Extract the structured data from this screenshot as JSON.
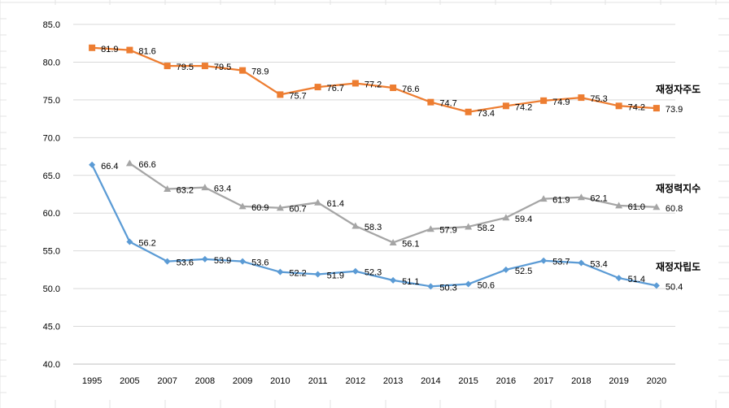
{
  "chart_data": {
    "type": "line",
    "title": "",
    "xlabel": "",
    "ylabel": "",
    "categories": [
      "1995",
      "2005",
      "2007",
      "2008",
      "2009",
      "2010",
      "2011",
      "2012",
      "2013",
      "2014",
      "2015",
      "2016",
      "2017",
      "2018",
      "2019",
      "2020"
    ],
    "ylim": [
      40.0,
      85.0
    ],
    "yticks": [
      "40.0",
      "45.0",
      "50.0",
      "55.0",
      "60.0",
      "65.0",
      "70.0",
      "75.0",
      "80.0",
      "85.0"
    ],
    "grid": "horizontal",
    "legend": "inline-right",
    "series": [
      {
        "name": "재정자주도",
        "color": "#ED7D31",
        "marker": "square",
        "values": [
          81.9,
          81.6,
          79.5,
          79.5,
          78.9,
          75.7,
          76.7,
          77.2,
          76.6,
          74.7,
          73.4,
          74.2,
          74.9,
          75.3,
          74.2,
          73.9
        ],
        "labels": [
          "81.9",
          "81.6",
          "79.5",
          "79.5",
          "78.9",
          "75.7",
          "76.7",
          "77.2",
          "76.6",
          "74.7",
          "73.4",
          "74.2",
          "74.9",
          "75.3",
          "74.2",
          "73.9"
        ]
      },
      {
        "name": "재정력지수",
        "color": "#A5A5A5",
        "marker": "triangle",
        "values": [
          null,
          66.6,
          63.2,
          63.4,
          60.9,
          60.7,
          61.4,
          58.3,
          56.1,
          57.9,
          58.2,
          59.4,
          61.9,
          62.1,
          61.0,
          60.8
        ],
        "labels": [
          "",
          "66.6",
          "63.2",
          "63.4",
          "60.9",
          "60.7",
          "61.4",
          "58.3",
          "56.1",
          "57.9",
          "58.2",
          "59.4",
          "61.9",
          "62.1",
          "61.0",
          "60.8"
        ]
      },
      {
        "name": "재정자립도",
        "color": "#5B9BD5",
        "marker": "diamond",
        "values": [
          66.4,
          56.2,
          53.6,
          53.9,
          53.6,
          52.2,
          51.9,
          52.3,
          51.1,
          50.3,
          50.6,
          52.5,
          53.7,
          53.4,
          51.4,
          50.4
        ],
        "labels": [
          "66.4",
          "56.2",
          "53.6",
          "53.9",
          "53.6",
          "52.2",
          "51.9",
          "52.3",
          "51.1",
          "50.3",
          "50.6",
          "52.5",
          "53.7",
          "53.4",
          "51.4",
          "50.4"
        ]
      }
    ]
  }
}
